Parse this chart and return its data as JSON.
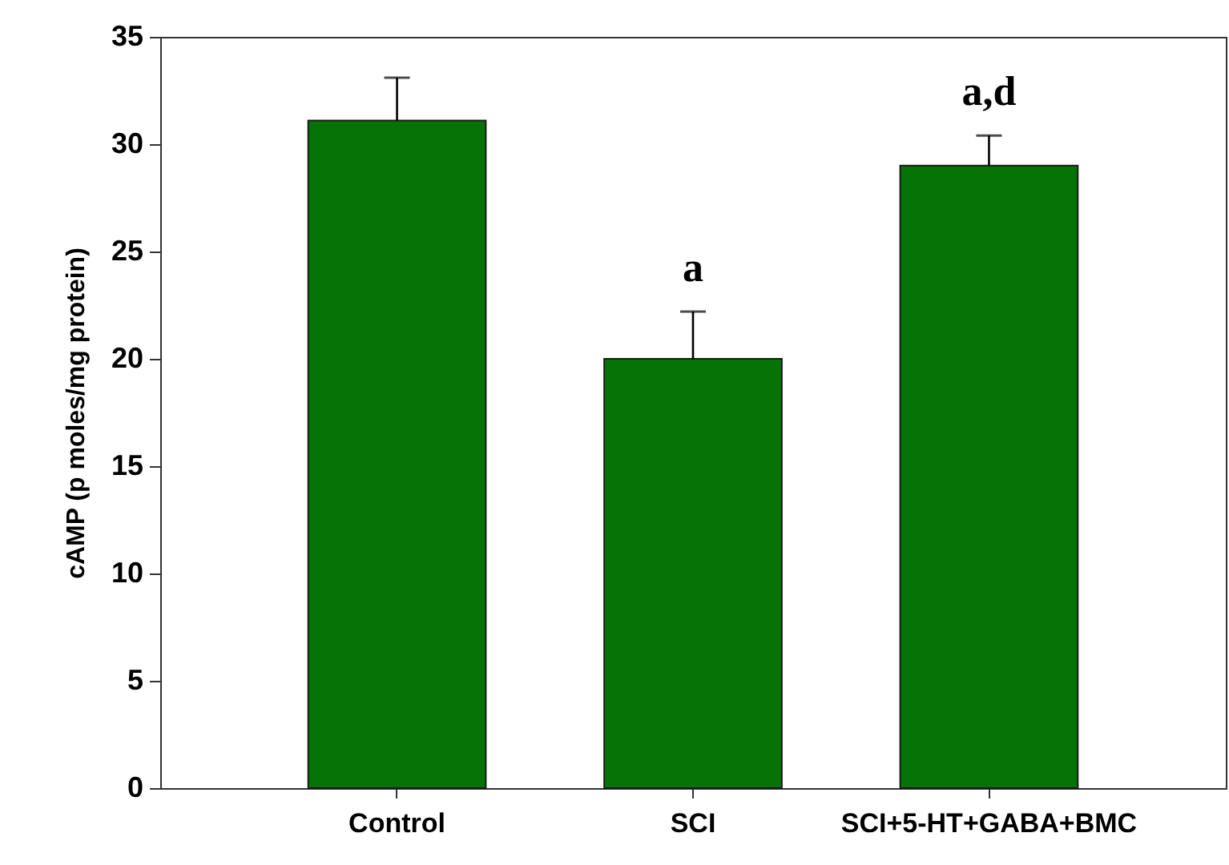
{
  "chart_data": {
    "type": "bar",
    "ylabel": "cAMP (p moles/mg protein)",
    "categories": [
      "Control",
      "SCI",
      "SCI+5-HT+GABA+BMC"
    ],
    "values": [
      31.1,
      20,
      29
    ],
    "errors": [
      2,
      2.2,
      1.4
    ],
    "color": "#057305",
    "ylim": [
      0,
      35
    ],
    "yticks": [
      0,
      5,
      10,
      15,
      20,
      25,
      30,
      35
    ],
    "grid": false,
    "annotations": [
      {
        "text": "a",
        "x": "SCI",
        "y": 22.2
      },
      {
        "text": "a,d",
        "x": "SCI+5-HT+GABA+BMC",
        "y": 30.4
      }
    ]
  }
}
